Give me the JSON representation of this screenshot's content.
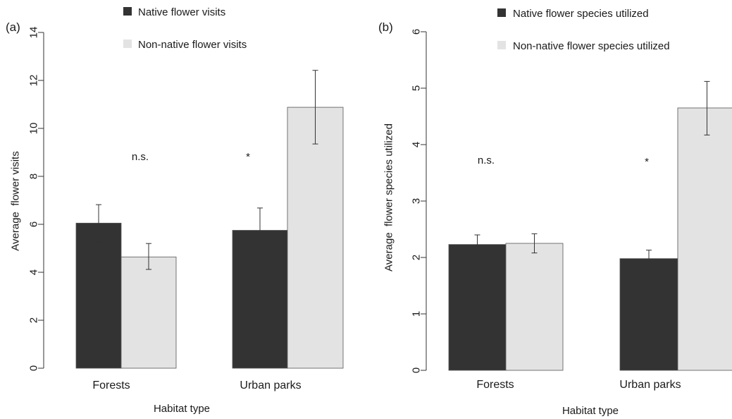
{
  "chart_data": [
    {
      "type": "bar",
      "panel_label": "(a)",
      "categories": [
        "Forests",
        "Urban parks"
      ],
      "series": [
        {
          "name": "Native flower visits",
          "values": [
            6.05,
            5.75
          ],
          "err_low": [
            5.27,
            4.83
          ],
          "err_high": [
            6.82,
            6.68
          ],
          "color": "#333333"
        },
        {
          "name": "Non-native flower visits",
          "values": [
            4.64,
            10.88
          ],
          "err_low": [
            4.12,
            9.35
          ],
          "err_high": [
            5.2,
            12.42
          ],
          "color": "#e3e3e3"
        }
      ],
      "annotations": [
        "n.s.",
        "*"
      ],
      "xlabel": "Habitat type",
      "ylabel": "Average  flower visits",
      "ylim": [
        0,
        14
      ],
      "yticks": [
        "0",
        "2",
        "4",
        "6",
        "8",
        "10",
        "12",
        "14"
      ],
      "legend_position": "top"
    },
    {
      "type": "bar",
      "panel_label": "(b)",
      "categories": [
        "Forests",
        "Urban parks"
      ],
      "series": [
        {
          "name": "Native flower species utilized",
          "values": [
            2.23,
            1.98
          ],
          "err_low": [
            2.05,
            1.82
          ],
          "err_high": [
            2.4,
            2.13
          ],
          "color": "#333333"
        },
        {
          "name": "Non-native flower species utilized",
          "values": [
            2.25,
            4.65
          ],
          "err_low": [
            2.08,
            4.17
          ],
          "err_high": [
            2.42,
            5.12
          ],
          "color": "#e3e3e3"
        }
      ],
      "annotations": [
        "n.s.",
        "*"
      ],
      "xlabel": "Habitat type",
      "ylabel": "Average  flower species utilized",
      "ylim": [
        0,
        6
      ],
      "yticks": [
        "0",
        "1",
        "2",
        "3",
        "4",
        "5",
        "6"
      ],
      "legend_position": "top"
    }
  ]
}
